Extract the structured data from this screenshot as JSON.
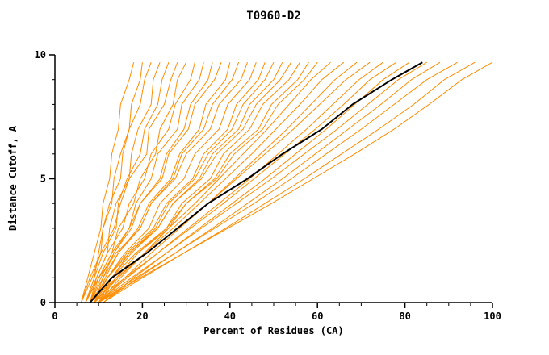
{
  "chart_data": {
    "type": "line",
    "title": "T0960-D2",
    "xlabel": "Percent of Residues (CA)",
    "ylabel": "Distance Cutoff, A",
    "xlim": [
      0,
      100
    ],
    "ylim": [
      0,
      10
    ],
    "xticks_major": [
      0,
      20,
      40,
      60,
      80,
      100
    ],
    "xtick_minor_step": 5,
    "yticks_major": [
      0,
      5,
      10
    ],
    "ytick_minor_step": 1,
    "grid": false,
    "legend": "none",
    "colors": {
      "models": "#ff8c00",
      "highlight": "#000000",
      "axis": "#000000"
    },
    "y_points": [
      0,
      1,
      2,
      3,
      4,
      5,
      6,
      7,
      8,
      9,
      9.7
    ],
    "highlight_series": {
      "name": "target-model-black",
      "x": [
        8,
        13,
        21,
        28,
        35,
        44,
        52,
        61,
        68,
        77,
        84
      ]
    },
    "model_series": [
      {
        "x": [
          6,
          7.5,
          9,
          10.5,
          11,
          12.5,
          13,
          14.5,
          15,
          17,
          18
        ]
      },
      {
        "x": [
          7,
          9,
          10,
          11,
          13,
          13.5,
          15,
          17,
          17.5,
          19.5,
          20
        ]
      },
      {
        "x": [
          6,
          8,
          10.5,
          11,
          12.5,
          15,
          15.5,
          17,
          19.5,
          20.5,
          22
        ]
      },
      {
        "x": [
          8,
          9.5,
          12,
          12.5,
          14,
          17,
          17.5,
          19,
          22,
          22.5,
          24
        ]
      },
      {
        "x": [
          7,
          9,
          11,
          14,
          14.5,
          16.5,
          19.5,
          20.5,
          23.5,
          24.5,
          26
        ]
      },
      {
        "x": [
          6,
          8.5,
          10.5,
          13.5,
          15,
          17,
          21,
          21.5,
          25,
          26.5,
          28
        ]
      },
      {
        "x": [
          8,
          10,
          13,
          14.5,
          18,
          19.5,
          23,
          24,
          27,
          28,
          30
        ]
      },
      {
        "x": [
          7,
          9.5,
          12,
          15.5,
          17,
          20.5,
          22,
          26,
          27.5,
          31,
          32
        ]
      },
      {
        "x": [
          9,
          11,
          13.5,
          17,
          18.5,
          22,
          23.5,
          28,
          29,
          33,
          34
        ]
      },
      {
        "x": [
          8,
          10.5,
          13.5,
          17.5,
          19.5,
          24,
          25.5,
          29.5,
          31,
          35,
          36
        ]
      },
      {
        "x": [
          7,
          10,
          13,
          17,
          19.5,
          24.5,
          26,
          30.5,
          32,
          36.5,
          38
        ]
      },
      {
        "x": [
          9,
          11.5,
          14.5,
          19,
          21.5,
          26.5,
          28.5,
          33,
          34.5,
          39,
          40
        ]
      },
      {
        "x": [
          8,
          11,
          14.5,
          19.5,
          22,
          27,
          29,
          34,
          36,
          40.5,
          42
        ]
      },
      {
        "x": [
          7,
          10,
          14,
          19.5,
          22,
          27.5,
          30,
          35.5,
          37.5,
          42.5,
          44
        ]
      },
      {
        "x": [
          9,
          12,
          16,
          21.5,
          24,
          29.5,
          32,
          37.5,
          39.5,
          44.5,
          46
        ]
      },
      {
        "x": [
          8,
          12,
          16.5,
          22.5,
          25.5,
          31.5,
          34,
          39.5,
          41.5,
          46.5,
          48
        ]
      },
      {
        "x": [
          10,
          13,
          17,
          23,
          26,
          32,
          35,
          40.5,
          43,
          48,
          50
        ]
      },
      {
        "x": [
          9,
          13,
          17.5,
          23.5,
          27,
          33,
          36,
          42,
          44.5,
          50,
          52
        ]
      },
      {
        "x": [
          8,
          12,
          17,
          23.5,
          27,
          33.5,
          37,
          43,
          46,
          51.5,
          54
        ]
      },
      {
        "x": [
          10,
          14,
          19,
          25.5,
          29,
          35.5,
          38.5,
          44.5,
          47.5,
          53.5,
          56
        ]
      },
      {
        "x": [
          9,
          14,
          19,
          26,
          30,
          36.5,
          40,
          46.5,
          49.5,
          55.5,
          58
        ]
      },
      {
        "x": [
          8,
          13,
          18.5,
          25.5,
          30,
          37,
          41,
          47.5,
          51,
          57,
          60
        ]
      },
      {
        "x": [
          10,
          15,
          20.5,
          26,
          32,
          37.5,
          43,
          48.5,
          53.5,
          58.5,
          63
        ]
      },
      {
        "x": [
          9,
          14.5,
          20.5,
          27,
          33,
          39,
          45,
          50.5,
          56,
          61,
          66
        ]
      },
      {
        "x": [
          10,
          16,
          22,
          28.5,
          35,
          41,
          47,
          53,
          58.5,
          64,
          69
        ]
      },
      {
        "x": [
          8,
          14,
          21,
          28,
          35,
          41.5,
          48,
          54.5,
          60.5,
          66.5,
          72
        ]
      },
      {
        "x": [
          10,
          16.5,
          23.5,
          30.5,
          37.5,
          44.5,
          51,
          57.5,
          63.5,
          69.5,
          75
        ]
      },
      {
        "x": [
          9,
          16,
          23.5,
          31,
          38.5,
          45.5,
          52.5,
          59.5,
          66,
          72,
          78
        ]
      },
      {
        "x": [
          11,
          18,
          25.5,
          33,
          40.5,
          48,
          55,
          62,
          68.5,
          75,
          81
        ]
      },
      {
        "x": [
          10,
          17.5,
          25.5,
          33.5,
          41.5,
          49.5,
          57,
          64.5,
          71.5,
          78.5,
          85
        ]
      },
      {
        "x": [
          11,
          19,
          27.5,
          36,
          44,
          52,
          59.5,
          67,
          74.5,
          81.5,
          88
        ]
      },
      {
        "x": [
          10,
          18.5,
          27.5,
          36.5,
          45.5,
          54,
          62,
          70,
          77.5,
          85,
          92
        ]
      },
      {
        "x": [
          11,
          20,
          29.5,
          39,
          48,
          57,
          65.5,
          74,
          82,
          89,
          96
        ]
      },
      {
        "x": [
          10,
          19.5,
          29.5,
          39.5,
          49.5,
          59,
          68.5,
          77.5,
          85.5,
          93,
          100
        ]
      }
    ]
  }
}
